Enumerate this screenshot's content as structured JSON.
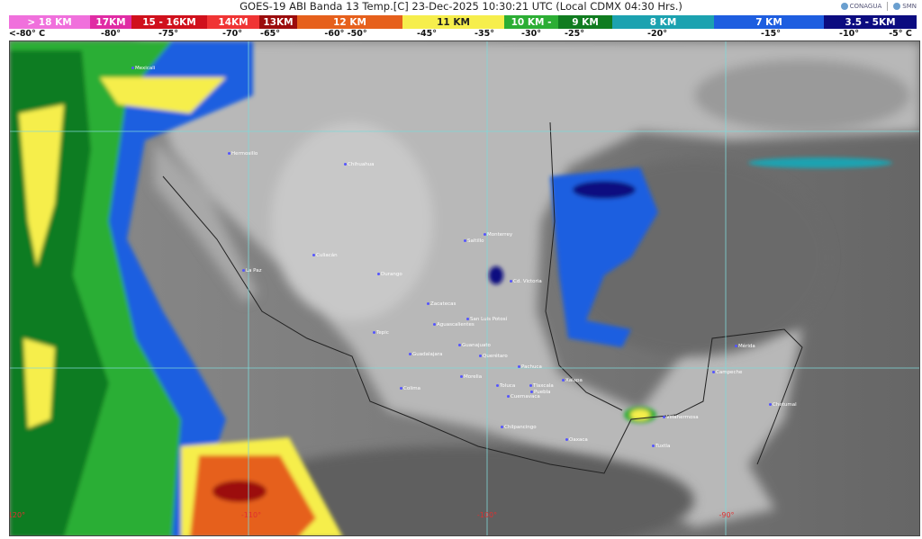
{
  "header": {
    "title": "GOES-19 ABI Banda 13 Temp.[C] 23-Dec-2025 10:30:21 UTC (Local CDMX  04:30 Hrs.)",
    "logos": [
      "CONAGUA",
      "SMN"
    ]
  },
  "legend": {
    "segments": [
      {
        "label": "> 18 KM",
        "color": "#f070dc"
      },
      {
        "label": "17KM",
        "color": "#e02ca4"
      },
      {
        "label": "15 - 16KM",
        "color": "#d0101c"
      },
      {
        "label": "14KM",
        "color": "#f03434"
      },
      {
        "label": "13KM",
        "color": "#9c0c0c"
      },
      {
        "label": "12 KM",
        "color": "#e6601c"
      },
      {
        "label": "11 KM",
        "color": "#f6ee4c"
      },
      {
        "label": "10 KM -",
        "color": "#2cae34"
      },
      {
        "label": "9 KM",
        "color": "#107c20"
      },
      {
        "label": "8 KM",
        "color": "#1ca2b0"
      },
      {
        "label": "7 KM",
        "color": "#1e5ee0"
      },
      {
        "label": "3.5 - 5KM",
        "color": "#0c0c80"
      }
    ],
    "temps": [
      "<-80° C",
      "-80°",
      "-75°",
      "-70°",
      "-65°",
      "-60°  -50°",
      "-45°",
      "-35°",
      "-30°",
      "-25°",
      "-20°",
      "-15°",
      "-10°",
      "-5°  C"
    ]
  },
  "map": {
    "longitude_labels": [
      "-120°",
      "-110°",
      "-100°",
      "-90°"
    ],
    "cities": [
      "Mexicali",
      "Hermosillo",
      "Chihuahua",
      "Culiacán",
      "La Paz",
      "Durango",
      "Monterrey",
      "Saltillo",
      "Cd. Victoria",
      "Zacatecas",
      "San Luis Potosí",
      "Aguascalientes",
      "Tepic",
      "Guadalajara",
      "Guanajuato",
      "Querétaro",
      "Morelia",
      "Pachuca",
      "Colima",
      "Toluca",
      "Tlaxcala",
      "Puebla",
      "Cuernavaca",
      "Xalapa",
      "Chilpancingo",
      "Oaxaca",
      "Villahermosa",
      "Tuxtla",
      "Campeche",
      "Mérida",
      "Chetumal"
    ]
  }
}
